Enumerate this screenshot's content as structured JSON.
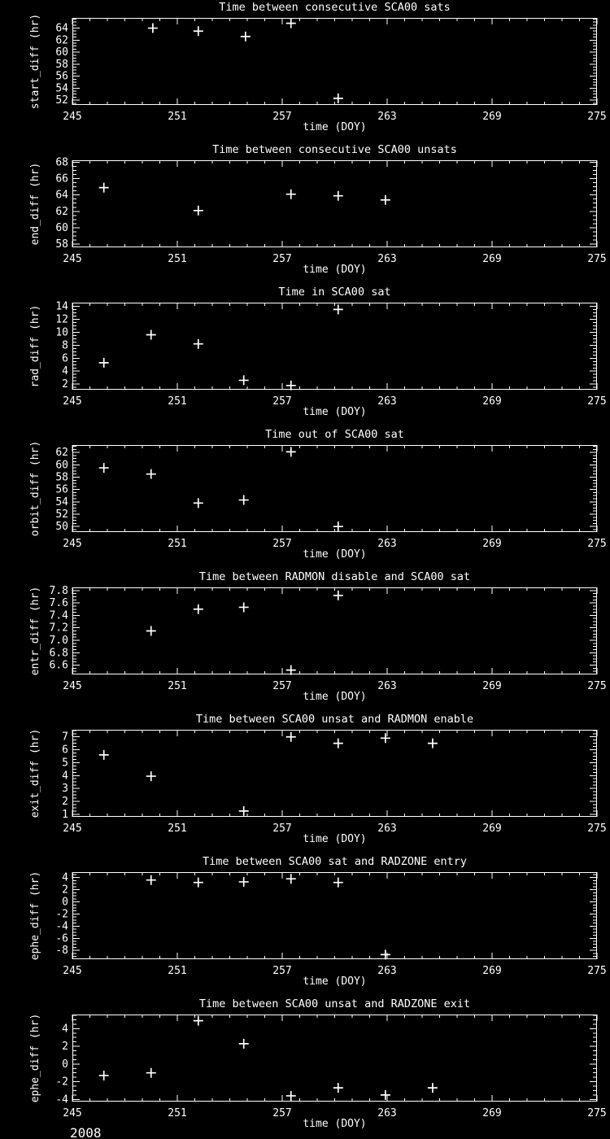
{
  "page": {
    "background": "#000000",
    "foreground": "#ffffff",
    "year_label": "2008"
  },
  "axis_defaults": {
    "xlabel": "time (DOY)",
    "xlim": [
      245,
      275
    ],
    "xtick_vals": [
      245,
      251,
      257,
      263,
      269,
      275
    ],
    "xtick_labels": [
      "245",
      "251",
      "257",
      "263",
      "269",
      "275"
    ],
    "xminor_step": 1,
    "grid": false,
    "legend": "none"
  },
  "chart_data": [
    {
      "type": "scatter",
      "marker": "plus",
      "title": "Time between consecutive SCA00 sats",
      "ylabel": "start_diff (hr)",
      "xlabel": "time (DOY)",
      "ylim": [
        51.2,
        65.7
      ],
      "ytick_vals": [
        52,
        54,
        56,
        58,
        60,
        62,
        64
      ],
      "ytick_labels": [
        "52",
        "54",
        "56",
        "58",
        "60",
        "62",
        "64"
      ],
      "yminor_step": 0.5,
      "x": [
        249.6,
        252.2,
        254.9,
        257.5,
        260.2
      ],
      "y": [
        64.0,
        63.5,
        62.6,
        64.8,
        52.3
      ]
    },
    {
      "type": "scatter",
      "marker": "plus",
      "title": "Time between consecutive SCA00 unsats",
      "ylabel": "end_diff (hr)",
      "xlabel": "time (DOY)",
      "ylim": [
        57.6,
        68.25
      ],
      "ytick_vals": [
        58,
        60,
        62,
        64,
        66,
        68
      ],
      "ytick_labels": [
        "58",
        "60",
        "62",
        "64",
        "66",
        "68"
      ],
      "yminor_step": 0.5,
      "x": [
        246.8,
        252.2,
        257.5,
        260.2,
        262.9
      ],
      "y": [
        64.9,
        62.1,
        64.1,
        63.9,
        63.4
      ]
    },
    {
      "type": "scatter",
      "marker": "plus",
      "title": "Time in SCA00 sat",
      "ylabel": "rad_diff (hr)",
      "xlabel": "time (DOY)",
      "ylim": [
        1.15,
        14.55
      ],
      "ytick_vals": [
        2,
        4,
        6,
        8,
        10,
        12,
        14
      ],
      "ytick_labels": [
        "2",
        "4",
        "6",
        "8",
        "10",
        "12",
        "14"
      ],
      "yminor_step": 0.5,
      "x": [
        246.8,
        249.5,
        252.2,
        254.8,
        257.5,
        260.2
      ],
      "y": [
        5.3,
        9.6,
        8.2,
        2.6,
        1.8,
        13.5
      ]
    },
    {
      "type": "scatter",
      "marker": "plus",
      "title": "Time out of SCA00 sat",
      "ylabel": "orbit_diff (hr)",
      "xlabel": "time (DOY)",
      "ylim": [
        49.1,
        63.2
      ],
      "ytick_vals": [
        50,
        52,
        54,
        56,
        58,
        60,
        62
      ],
      "ytick_labels": [
        "50",
        "52",
        "54",
        "56",
        "58",
        "60",
        "62"
      ],
      "yminor_step": 0.5,
      "x": [
        246.8,
        249.5,
        252.2,
        254.8,
        257.5,
        260.2
      ],
      "y": [
        59.5,
        58.5,
        53.8,
        54.3,
        62.1,
        50.0
      ]
    },
    {
      "type": "scatter",
      "marker": "plus",
      "title": "Time between RADMON disable and SCA00 sat",
      "ylabel": "entr_diff (hr)",
      "xlabel": "time (DOY)",
      "ylim": [
        6.45,
        7.85
      ],
      "ytick_vals": [
        6.6,
        6.8,
        7.0,
        7.2,
        7.4,
        7.6,
        7.8
      ],
      "ytick_labels": [
        "6.6",
        "6.8",
        "7.0",
        "7.2",
        "7.4",
        "7.6",
        "7.8"
      ],
      "yminor_step": 0.05,
      "x": [
        249.5,
        252.2,
        254.8,
        257.5,
        260.2
      ],
      "y": [
        7.15,
        7.5,
        7.53,
        6.52,
        7.72
      ]
    },
    {
      "type": "scatter",
      "marker": "plus",
      "title": "Time between SCA00 unsat and RADMON enable",
      "ylabel": "exit_diff (hr)",
      "xlabel": "time (DOY)",
      "ylim": [
        0.8,
        7.55
      ],
      "ytick_vals": [
        1,
        2,
        3,
        4,
        5,
        6,
        7
      ],
      "ytick_labels": [
        "1",
        "2",
        "3",
        "4",
        "5",
        "6",
        "7"
      ],
      "yminor_step": 0.25,
      "x": [
        246.8,
        249.5,
        254.8,
        257.5,
        260.2,
        262.9,
        265.6
      ],
      "y": [
        5.6,
        3.95,
        1.25,
        7.0,
        6.5,
        6.9,
        6.5
      ]
    },
    {
      "type": "scatter",
      "marker": "plus",
      "title": "Time between SCA00 sat and RADZONE entry",
      "ylabel": "ephe_diff (hr)",
      "xlabel": "time (DOY)",
      "ylim": [
        -9.45,
        4.9
      ],
      "ytick_vals": [
        -8,
        -6,
        -4,
        -2,
        0,
        2,
        4
      ],
      "ytick_labels": [
        "-8",
        "-6",
        "-4",
        "-2",
        "0",
        "2",
        "4"
      ],
      "yminor_step": 0.5,
      "x": [
        249.5,
        252.2,
        254.8,
        257.5,
        260.2,
        262.9
      ],
      "y": [
        3.6,
        3.2,
        3.3,
        3.8,
        3.2,
        -8.7
      ]
    },
    {
      "type": "scatter",
      "marker": "plus",
      "title": "Time between SCA00 unsat and RADZONE exit",
      "ylabel": "ephe_diff (hr)",
      "xlabel": "time (DOY)",
      "ylim": [
        -4.25,
        5.6
      ],
      "ytick_vals": [
        -4,
        -2,
        0,
        2,
        4
      ],
      "ytick_labels": [
        "-4",
        "-2",
        "0",
        "2",
        "4"
      ],
      "yminor_step": 0.5,
      "x": [
        246.8,
        249.5,
        252.2,
        254.8,
        257.5,
        260.2,
        262.9,
        265.6
      ],
      "y": [
        -1.3,
        -1.0,
        4.9,
        2.3,
        -3.6,
        -2.7,
        -3.5,
        -2.7
      ]
    }
  ]
}
